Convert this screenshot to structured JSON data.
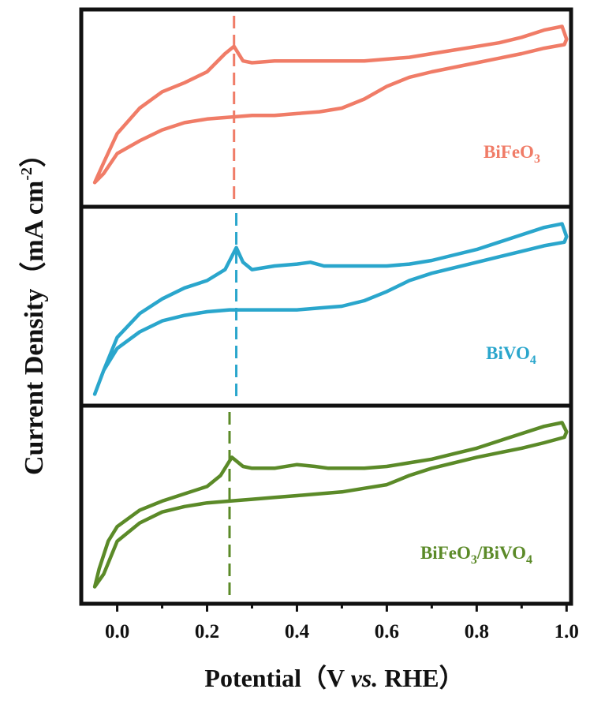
{
  "chart_data": {
    "type": "line",
    "xlabel": "Potential（V vs. RHE）",
    "xlabel_parts": [
      "Potential（V ",
      "vs.",
      " RHE）"
    ],
    "ylabel": "Current Density（mA cm-2）",
    "ylabel_parts": [
      "Current Density（mA cm",
      "-2",
      "）"
    ],
    "xlim": [
      -0.08,
      1.01
    ],
    "x_ticks": [
      0.0,
      0.2,
      0.4,
      0.6,
      0.8,
      1.0
    ],
    "x_tick_labels": [
      "0.0",
      "0.2",
      "0.4",
      "0.6",
      "0.8",
      "1.0"
    ],
    "stacked_panels": 3,
    "y_tick_labels": false,
    "panels": [
      {
        "name": "BiFeO3",
        "label_parts": [
          [
            "BiFeO",
            false
          ],
          [
            "3",
            true
          ]
        ],
        "color": "#f07c67",
        "peak_marker_x": 0.26,
        "ylim": [
          0,
          1
        ],
        "x": [
          -0.05,
          -0.03,
          0.0,
          0.05,
          0.1,
          0.15,
          0.2,
          0.24,
          0.26,
          0.28,
          0.3,
          0.35,
          0.4,
          0.45,
          0.5,
          0.55,
          0.6,
          0.65,
          0.7,
          0.75,
          0.8,
          0.85,
          0.9,
          0.95,
          0.99,
          1.0,
          0.995,
          0.95,
          0.9,
          0.8,
          0.7,
          0.65,
          0.6,
          0.55,
          0.5,
          0.45,
          0.4,
          0.35,
          0.3,
          0.25,
          0.2,
          0.15,
          0.1,
          0.05,
          0.0,
          -0.03,
          -0.05
        ],
        "y": [
          0.09,
          0.2,
          0.36,
          0.5,
          0.59,
          0.64,
          0.7,
          0.8,
          0.84,
          0.76,
          0.75,
          0.76,
          0.76,
          0.76,
          0.76,
          0.76,
          0.77,
          0.78,
          0.8,
          0.82,
          0.84,
          0.86,
          0.89,
          0.93,
          0.95,
          0.88,
          0.85,
          0.83,
          0.8,
          0.75,
          0.7,
          0.67,
          0.62,
          0.55,
          0.5,
          0.48,
          0.47,
          0.46,
          0.46,
          0.45,
          0.44,
          0.42,
          0.38,
          0.32,
          0.25,
          0.14,
          0.09
        ]
      },
      {
        "name": "BiVO4",
        "label_parts": [
          [
            "BiVO",
            false
          ],
          [
            "4",
            true
          ]
        ],
        "color": "#2aa6cc",
        "peak_marker_x": 0.265,
        "ylim": [
          0,
          1
        ],
        "x": [
          -0.05,
          -0.03,
          0.0,
          0.05,
          0.1,
          0.15,
          0.2,
          0.24,
          0.265,
          0.28,
          0.3,
          0.35,
          0.4,
          0.43,
          0.46,
          0.5,
          0.55,
          0.6,
          0.65,
          0.7,
          0.75,
          0.8,
          0.85,
          0.9,
          0.95,
          0.99,
          1.0,
          0.995,
          0.95,
          0.9,
          0.8,
          0.7,
          0.65,
          0.6,
          0.55,
          0.5,
          0.45,
          0.4,
          0.35,
          0.3,
          0.25,
          0.2,
          0.15,
          0.1,
          0.05,
          0.0,
          -0.03,
          -0.05
        ],
        "y": [
          0.02,
          0.15,
          0.33,
          0.46,
          0.54,
          0.6,
          0.64,
          0.7,
          0.82,
          0.74,
          0.7,
          0.72,
          0.73,
          0.74,
          0.72,
          0.72,
          0.72,
          0.72,
          0.73,
          0.75,
          0.78,
          0.81,
          0.85,
          0.89,
          0.93,
          0.95,
          0.88,
          0.85,
          0.83,
          0.8,
          0.74,
          0.68,
          0.64,
          0.58,
          0.53,
          0.5,
          0.49,
          0.48,
          0.48,
          0.48,
          0.48,
          0.47,
          0.45,
          0.42,
          0.36,
          0.27,
          0.15,
          0.02
        ]
      },
      {
        "name": "BiFeO3/BiVO4",
        "label_parts": [
          [
            "BiFeO",
            false
          ],
          [
            "3",
            true
          ],
          [
            "/BiVO",
            false
          ],
          [
            "4",
            true
          ]
        ],
        "color": "#5b8a28",
        "peak_marker_x": 0.25,
        "ylim": [
          0,
          1
        ],
        "x": [
          -0.05,
          -0.04,
          -0.02,
          0.0,
          0.05,
          0.1,
          0.15,
          0.2,
          0.23,
          0.255,
          0.28,
          0.3,
          0.35,
          0.4,
          0.44,
          0.47,
          0.5,
          0.55,
          0.6,
          0.65,
          0.7,
          0.75,
          0.8,
          0.85,
          0.9,
          0.95,
          0.99,
          1.0,
          0.995,
          0.95,
          0.9,
          0.8,
          0.7,
          0.65,
          0.6,
          0.55,
          0.5,
          0.45,
          0.4,
          0.35,
          0.3,
          0.25,
          0.2,
          0.15,
          0.1,
          0.05,
          0.0,
          -0.03,
          -0.05
        ],
        "y": [
          0.05,
          0.15,
          0.3,
          0.38,
          0.47,
          0.52,
          0.56,
          0.6,
          0.66,
          0.76,
          0.71,
          0.7,
          0.7,
          0.72,
          0.71,
          0.7,
          0.7,
          0.7,
          0.71,
          0.73,
          0.75,
          0.78,
          0.81,
          0.85,
          0.89,
          0.93,
          0.95,
          0.9,
          0.87,
          0.84,
          0.81,
          0.76,
          0.7,
          0.66,
          0.61,
          0.59,
          0.57,
          0.56,
          0.55,
          0.54,
          0.53,
          0.52,
          0.51,
          0.49,
          0.46,
          0.4,
          0.3,
          0.12,
          0.05
        ]
      }
    ]
  }
}
